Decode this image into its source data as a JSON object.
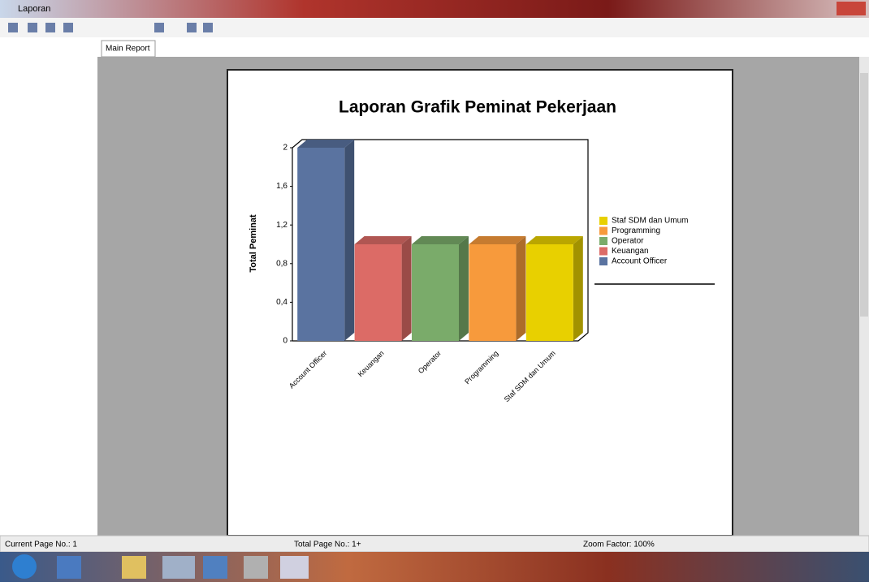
{
  "window": {
    "title": "Laporan",
    "tab": "Main Report"
  },
  "chart_data": {
    "type": "bar",
    "title": "Laporan Grafik Peminat Pekerjaan",
    "y_label": "Total Peminat",
    "categories": [
      "Account Officer",
      "Keuangan",
      "Operator",
      "Programming",
      "Staf SDM dan Umum"
    ],
    "values": [
      2,
      1,
      1,
      1,
      1
    ],
    "colors": [
      "#5a73a0",
      "#dc6b66",
      "#7aab6a",
      "#f79a3c",
      "#e8d000"
    ],
    "ylim": [
      0,
      2
    ],
    "yticks": [
      0,
      {
        "value": 0.4,
        "label": "0,4"
      },
      {
        "value": 0.8,
        "label": "0,8"
      },
      {
        "value": 1.2,
        "label": "1,2"
      },
      {
        "value": 1.6,
        "label": "1,6"
      },
      2
    ],
    "legend": "right"
  },
  "status_bar": {
    "page": "Current Page No.: 1",
    "total": "Total Page No.: 1+",
    "zoom": "Zoom Factor: 100%"
  }
}
